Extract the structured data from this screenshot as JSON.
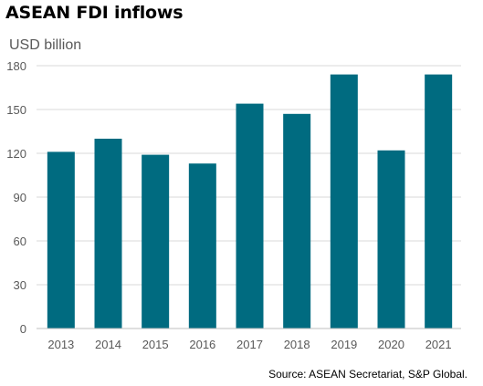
{
  "title": "ASEAN FDI inflows",
  "unit": "USD billion",
  "source": "Source: ASEAN Secretariat, S&P Global.",
  "colors": {
    "bar": "#006b80",
    "grid": "#d9d9d9",
    "axis": "#bfbfbf",
    "tick_text": "#595959"
  },
  "chart_data": {
    "type": "bar",
    "title": "ASEAN FDI inflows",
    "ylabel": "USD billion",
    "xlabel": "",
    "categories": [
      "2013",
      "2014",
      "2015",
      "2016",
      "2017",
      "2018",
      "2019",
      "2020",
      "2021"
    ],
    "values": [
      121,
      130,
      119,
      113,
      154,
      147,
      174,
      122,
      174
    ],
    "ylim": [
      0,
      180
    ],
    "yticks": [
      0,
      30,
      60,
      90,
      120,
      150,
      180
    ],
    "grid": true
  }
}
